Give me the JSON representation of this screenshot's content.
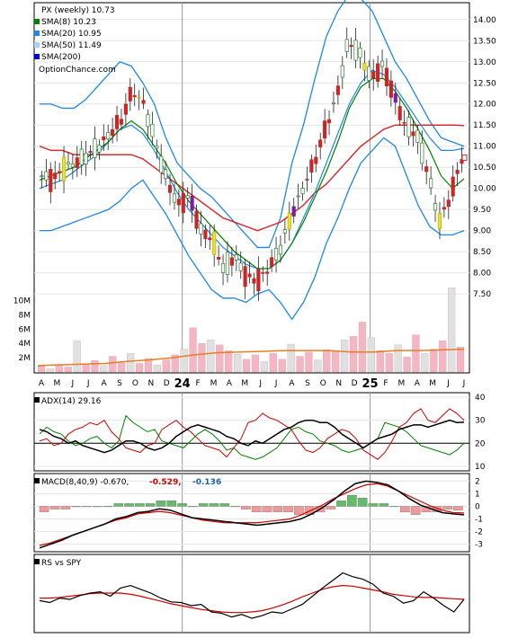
{
  "chart_data": [
    {
      "type": "candlestick",
      "title": "PX (weekly) 10.73",
      "source": "OptionChance.com",
      "legend": [
        {
          "label": "SMA(8) 10.23",
          "color": "#008000"
        },
        {
          "label": "SMA(20) 10.95",
          "color": "#1e88e5"
        },
        {
          "label": "SMA(50) 11.49",
          "color": "#a8d0f0"
        },
        {
          "label": "SMA(200)",
          "color": "#0000cc"
        }
      ],
      "y_ticks": [
        "14.00",
        "13.50",
        "13.00",
        "12.50",
        "12.00",
        "11.50",
        "11.00",
        "10.50",
        "10.00",
        "9.50",
        "9.00",
        "8.50",
        "8.00",
        "7.50"
      ],
      "ylim": [
        6.8,
        14.4
      ],
      "x_ticks": [
        "A",
        "M",
        "J",
        "J",
        "A",
        "S",
        "O",
        "N",
        "D",
        "24",
        "F",
        "M",
        "A",
        "M",
        "J",
        "J",
        "A",
        "S",
        "O",
        "N",
        "D",
        "25",
        "F",
        "M",
        "A",
        "M",
        "J",
        "J"
      ],
      "close_path": [
        10.3,
        10.2,
        10.5,
        10.6,
        10.8,
        11.0,
        11.3,
        11.6,
        12.3,
        12.0,
        11.1,
        10.2,
        9.6,
        9.8,
        9.0,
        8.8,
        8.1,
        8.4,
        7.9,
        7.8,
        8.1,
        8.6,
        9.4,
        10.0,
        10.6,
        11.4,
        12.2,
        13.5,
        13.2,
        12.6,
        12.9,
        12.2,
        11.5,
        11.3,
        10.4,
        9.2,
        9.8,
        10.7
      ],
      "sma8": [
        10.2,
        10.3,
        10.4,
        10.5,
        10.7,
        10.9,
        11.1,
        11.4,
        11.6,
        11.4,
        11.0,
        10.6,
        10.1,
        9.7,
        9.4,
        9.1,
        8.8,
        8.5,
        8.3,
        8.1,
        8.1,
        8.3,
        8.7,
        9.2,
        9.8,
        10.4,
        11.1,
        11.9,
        12.4,
        12.6,
        12.6,
        12.3,
        11.9,
        11.4,
        10.9,
        10.3,
        10.0,
        10.23
      ],
      "sma20": [
        10.0,
        10.1,
        10.2,
        10.4,
        10.6,
        10.8,
        11.1,
        11.4,
        11.5,
        11.3,
        10.9,
        10.4,
        9.9,
        9.5,
        9.2,
        8.9,
        8.6,
        8.4,
        8.2,
        8.1,
        8.1,
        8.3,
        8.7,
        9.3,
        9.9,
        10.6,
        11.3,
        12.0,
        12.5,
        12.8,
        12.7,
        12.4,
        12.0,
        11.6,
        11.2,
        10.9,
        10.9,
        10.95
      ],
      "sma50": [
        11.0,
        10.9,
        10.9,
        10.8,
        10.8,
        10.8,
        10.8,
        10.8,
        10.8,
        10.7,
        10.5,
        10.3,
        10.1,
        9.9,
        9.7,
        9.5,
        9.3,
        9.2,
        9.1,
        9.0,
        9.1,
        9.2,
        9.4,
        9.6,
        9.9,
        10.1,
        10.4,
        10.7,
        11.0,
        11.2,
        11.4,
        11.5,
        11.5,
        11.5,
        11.5,
        11.5,
        11.5,
        11.49
      ],
      "bb_upper": [
        12.0,
        12.0,
        11.9,
        11.9,
        12.1,
        12.4,
        12.7,
        13.0,
        12.9,
        12.5,
        12.0,
        11.2,
        10.6,
        10.3,
        10.0,
        9.8,
        9.5,
        9.2,
        8.9,
        8.6,
        8.6,
        9.3,
        10.6,
        11.5,
        12.6,
        13.6,
        14.2,
        14.6,
        14.5,
        14.2,
        13.6,
        13.0,
        12.6,
        12.1,
        11.6,
        11.2,
        11.1,
        11.0
      ],
      "bb_lower": [
        9.0,
        9.0,
        9.1,
        9.2,
        9.3,
        9.4,
        9.5,
        9.7,
        10.0,
        10.2,
        9.8,
        9.4,
        8.9,
        8.4,
        8.0,
        7.6,
        7.4,
        7.4,
        7.3,
        7.5,
        7.6,
        7.3,
        6.9,
        7.3,
        7.9,
        8.7,
        9.3,
        10.0,
        10.6,
        10.9,
        11.2,
        11.0,
        10.3,
        9.6,
        9.1,
        8.9,
        8.9,
        9.0
      ],
      "volume_ticks": [
        "10M",
        "8M",
        "6M",
        "4M",
        "2M"
      ],
      "volume_max": 11,
      "volume_values": [
        0.8,
        0.5,
        1.0,
        0.7,
        4.4,
        1.0,
        1.6,
        0.9,
        2.2,
        1.3,
        2.6,
        1.2,
        1.9,
        1.0,
        1.7,
        2.4,
        3.2,
        6.2,
        4.0,
        4.5,
        3.8,
        3.0,
        2.5,
        1.8,
        2.4,
        1.5,
        2.6,
        1.8,
        3.9,
        2.2,
        2.8,
        1.7,
        3.1,
        3.0,
        4.5,
        5.0,
        7.0,
        4.8,
        3.0,
        2.6,
        3.8,
        2.1,
        5.2,
        2.6,
        3.2,
        4.4,
        11.8,
        3.5
      ],
      "volume_avg": [
        0.9,
        1.0,
        1.1,
        1.2,
        1.5,
        1.7,
        2.0,
        2.4,
        2.7,
        2.8,
        2.9,
        3.0,
        3.0,
        3.0,
        2.8,
        2.8,
        3.0,
        3.0,
        3.1,
        3.2
      ]
    },
    {
      "type": "line",
      "title": "ADX(14) 29.16",
      "y_ticks": [
        "40",
        "30",
        "20",
        "10"
      ],
      "ylim": [
        8,
        42
      ],
      "adx": [
        26,
        25,
        23,
        22,
        20,
        21,
        19,
        18,
        17,
        16,
        17,
        19,
        21,
        21,
        20,
        18,
        17,
        18,
        20,
        23,
        25,
        27,
        28,
        27,
        26,
        25,
        23,
        22,
        20,
        19,
        21,
        20,
        22,
        24,
        26,
        27,
        29,
        30,
        30,
        29,
        29,
        27,
        24,
        22,
        20,
        18,
        20,
        22,
        23,
        24,
        26,
        27,
        28,
        28,
        27,
        28,
        29,
        30,
        29,
        29.16
      ],
      "di_plus": [
        24,
        27,
        25,
        24,
        21,
        19,
        20,
        22,
        23,
        20,
        18,
        21,
        32,
        29,
        27,
        25,
        26,
        21,
        20,
        19,
        18,
        21,
        24,
        26,
        24,
        21,
        17,
        18,
        15,
        14,
        13,
        14,
        16,
        18,
        22,
        26,
        27,
        25,
        24,
        21,
        20,
        19,
        17,
        16,
        17,
        18,
        20,
        22,
        29,
        28,
        27,
        25,
        22,
        19,
        18,
        17,
        16,
        15,
        17,
        20
      ],
      "di_minus": [
        21,
        22,
        19,
        20,
        24,
        26,
        27,
        29,
        28,
        30,
        25,
        22,
        18,
        17,
        16,
        19,
        20,
        26,
        28,
        30,
        27,
        25,
        22,
        19,
        18,
        17,
        14,
        18,
        22,
        29,
        30,
        33,
        31,
        30,
        28,
        26,
        21,
        17,
        16,
        18,
        22,
        24,
        26,
        25,
        22,
        17,
        15,
        13,
        16,
        21,
        27,
        29,
        33,
        35,
        30,
        29,
        32,
        35,
        33,
        30
      ],
      "reference_line": 20
    },
    {
      "type": "line",
      "title": "MACD(8,40,9) -0.670,",
      "signal_label": "-0.529,",
      "hist_label": "-0.136",
      "y_ticks": [
        "2",
        "1",
        "0",
        "-1",
        "-2",
        "-3"
      ],
      "ylim": [
        -3.6,
        2.6
      ],
      "macd": [
        -3.3,
        -3.0,
        -2.7,
        -2.3,
        -2.0,
        -1.7,
        -1.4,
        -1.0,
        -0.8,
        -0.5,
        -0.4,
        -0.2,
        -0.3,
        -0.6,
        -0.9,
        -1.0,
        -1.1,
        -1.2,
        -1.3,
        -1.4,
        -1.5,
        -1.4,
        -1.3,
        -1.2,
        -1.0,
        -0.6,
        -0.1,
        0.5,
        1.2,
        1.8,
        2.0,
        1.9,
        1.7,
        1.2,
        0.6,
        0.1,
        -0.2,
        -0.5,
        -0.6,
        -0.67
      ],
      "signal": [
        -3.1,
        -2.9,
        -2.6,
        -2.3,
        -2.0,
        -1.7,
        -1.4,
        -1.1,
        -0.9,
        -0.6,
        -0.5,
        -0.4,
        -0.5,
        -0.7,
        -0.9,
        -1.1,
        -1.2,
        -1.3,
        -1.3,
        -1.3,
        -1.3,
        -1.2,
        -1.1,
        -1.0,
        -0.7,
        -0.3,
        0.1,
        0.6,
        1.0,
        1.4,
        1.7,
        1.8,
        1.6,
        1.2,
        0.8,
        0.4,
        0.0,
        -0.3,
        -0.5,
        -0.529
      ],
      "histogram": [
        -0.2,
        -0.1,
        -0.1,
        0.0,
        0.0,
        0.0,
        0.0,
        0.1,
        0.1,
        0.1,
        0.1,
        0.2,
        0.2,
        0.1,
        0.0,
        0.1,
        0.1,
        0.1,
        0.0,
        -0.1,
        -0.2,
        -0.2,
        -0.2,
        -0.2,
        -0.3,
        -0.3,
        -0.2,
        -0.1,
        0.2,
        0.4,
        0.3,
        0.1,
        0.1,
        0.0,
        -0.2,
        -0.3,
        -0.2,
        -0.2,
        -0.1,
        -0.136
      ]
    },
    {
      "type": "line",
      "title": "RS vs SPY",
      "rs": [
        0.48,
        0.45,
        0.52,
        0.5,
        0.56,
        0.6,
        0.62,
        0.55,
        0.68,
        0.72,
        0.66,
        0.6,
        0.52,
        0.46,
        0.45,
        0.4,
        0.42,
        0.3,
        0.28,
        0.22,
        0.26,
        0.2,
        0.24,
        0.3,
        0.28,
        0.35,
        0.42,
        0.55,
        0.68,
        0.8,
        0.92,
        0.86,
        0.82,
        0.74,
        0.6,
        0.55,
        0.44,
        0.48,
        0.62,
        0.52,
        0.4,
        0.3,
        0.5
      ],
      "rs_ma": [
        0.52,
        0.52,
        0.53,
        0.55,
        0.57,
        0.59,
        0.6,
        0.6,
        0.6,
        0.58,
        0.55,
        0.51,
        0.47,
        0.43,
        0.4,
        0.37,
        0.34,
        0.32,
        0.3,
        0.29,
        0.29,
        0.3,
        0.32,
        0.36,
        0.41,
        0.47,
        0.54,
        0.6,
        0.66,
        0.7,
        0.72,
        0.71,
        0.68,
        0.65,
        0.62,
        0.58,
        0.56,
        0.54,
        0.53,
        0.53,
        0.52,
        0.51,
        0.5
      ]
    }
  ],
  "colors": {
    "up": "#2e7d32",
    "down": "#c62828",
    "highlight_up": "#e9e233",
    "highlight_down": "#7b1fa2",
    "sma8": "#008000",
    "sma20": "#1e88e5",
    "sma50": "#a8d0f0",
    "sma200": "#0000cc",
    "long_ma": "#d32f2f",
    "volume_bar": "#f4b6c2",
    "volume_bar_alt": "#e0e0e0",
    "volume_avg": "#e67e22",
    "adx": "#000000",
    "di_plus": "#008000",
    "di_minus": "#cc0000",
    "macd": "#000000",
    "signal": "#cc0000",
    "hist_pos": "#66bb6a",
    "hist_neg": "#ef9a9a",
    "signal_label_color": "#cc0000",
    "hist_label_color": "#1a5fb4"
  }
}
